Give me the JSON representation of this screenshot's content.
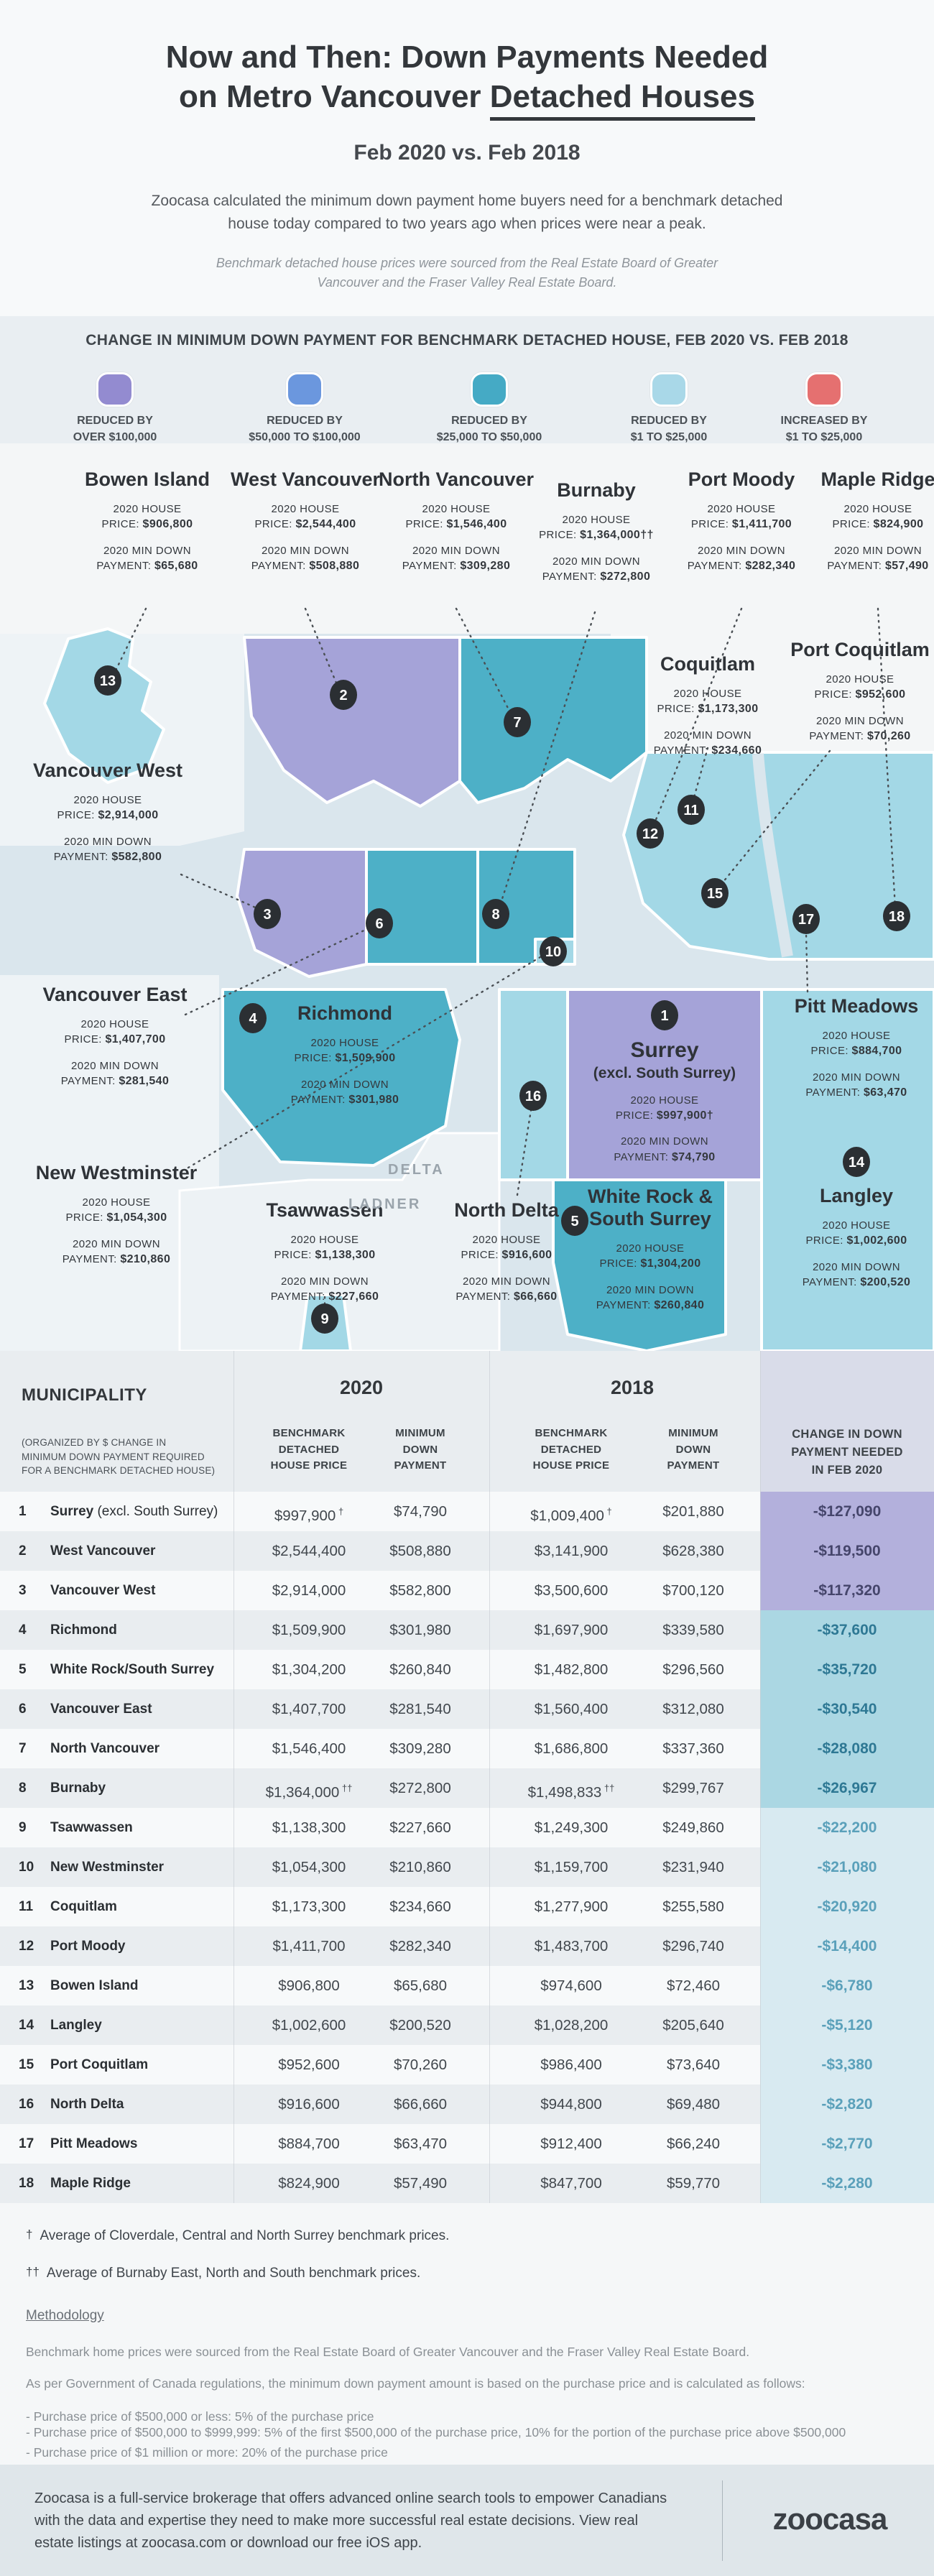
{
  "header": {
    "title_line1": "Now and Then: Down Payments Needed",
    "title_line2_prefix": "on Metro Vancouver ",
    "title_line2_underlined": "Detached Houses",
    "subtitle": "Feb 2020 vs. Feb 2018",
    "intro": "Zoocasa calculated the minimum down payment home buyers need for a benchmark detached house today compared to two years ago when prices were near a peak.",
    "source_note": "Benchmark detached house prices were sourced from the Real Estate Board of Greater Vancouver and the Fraser Valley Real Estate Board."
  },
  "legend": {
    "title": "CHANGE IN MINIMUM DOWN PAYMENT FOR BENCHMARK DETACHED HOUSE, FEB 2020 VS. FEB 2018",
    "items": [
      {
        "line1": "REDUCED BY",
        "line2": "OVER $100,000",
        "color": "#938bd0"
      },
      {
        "line1": "REDUCED BY",
        "line2": "$50,000 TO $100,000",
        "color": "#6b97de"
      },
      {
        "line1": "REDUCED BY",
        "line2": "$25,000 TO $50,000",
        "color": "#45aac5"
      },
      {
        "line1": "REDUCED BY",
        "line2": "$1 TO $25,000",
        "color": "#a9d8e8"
      },
      {
        "line1": "INCREASED BY",
        "line2": "$1 TO $25,000",
        "color": "#e57070"
      }
    ]
  },
  "map": {
    "label_captions": {
      "house": "2020 HOUSE",
      "price": "PRICE:",
      "down": "2020 MIN DOWN",
      "payment": "PAYMENT:"
    },
    "area_labels": [
      "DELTA",
      "LADNER"
    ],
    "municipalities": [
      {
        "id": 1,
        "name": "Surrey",
        "suffix": "(excl. South Surrey)",
        "price": "$997,900†",
        "payment": "$74,790",
        "category": "purple"
      },
      {
        "id": 2,
        "name": "West Vancouver",
        "price": "$2,544,400",
        "payment": "$508,880",
        "category": "purple"
      },
      {
        "id": 3,
        "name": "Vancouver West",
        "price": "$2,914,000",
        "payment": "$582,800",
        "category": "purple"
      },
      {
        "id": 4,
        "name": "Richmond",
        "price": "$1,509,900",
        "payment": "$301,980",
        "category": "teal"
      },
      {
        "id": 5,
        "name": "White Rock & South Surrey",
        "price": "$1,304,200",
        "payment": "$260,840",
        "category": "teal"
      },
      {
        "id": 6,
        "name": "Vancouver East",
        "price": "$1,407,700",
        "payment": "$281,540",
        "category": "teal"
      },
      {
        "id": 7,
        "name": "North Vancouver",
        "price": "$1,546,400",
        "payment": "$309,280",
        "category": "teal"
      },
      {
        "id": 8,
        "name": "Burnaby",
        "price": "$1,364,000††",
        "payment": "$272,800",
        "category": "teal"
      },
      {
        "id": 9,
        "name": "Tsawwassen",
        "price": "$1,138,300",
        "payment": "$227,660",
        "category": "light"
      },
      {
        "id": 10,
        "name": "New Westminster",
        "price": "$1,054,300",
        "payment": "$210,860",
        "category": "light"
      },
      {
        "id": 11,
        "name": "Coquitlam",
        "price": "$1,173,300",
        "payment": "$234,660",
        "category": "light"
      },
      {
        "id": 12,
        "name": "Port Moody",
        "price": "$1,411,700",
        "payment": "$282,340",
        "category": "light"
      },
      {
        "id": 13,
        "name": "Bowen Island",
        "price": "$906,800",
        "payment": "$65,680",
        "category": "light"
      },
      {
        "id": 14,
        "name": "Langley",
        "price": "$1,002,600",
        "payment": "$200,520",
        "category": "light"
      },
      {
        "id": 15,
        "name": "Port Coquitlam",
        "price": "$952,600",
        "payment": "$70,260",
        "category": "light"
      },
      {
        "id": 16,
        "name": "North Delta",
        "price": "$916,600",
        "payment": "$66,660",
        "category": "light"
      },
      {
        "id": 17,
        "name": "Pitt Meadows",
        "price": "$884,700",
        "payment": "$63,470",
        "category": "light"
      },
      {
        "id": 18,
        "name": "Maple Ridge",
        "price": "$824,900",
        "payment": "$57,490",
        "category": "light"
      }
    ]
  },
  "table": {
    "municipality_header": "MUNICIPALITY",
    "municipality_note_lines": [
      "(ORGANIZED BY $ CHANGE IN",
      "MINIMUM DOWN PAYMENT REQUIRED",
      "FOR A BENCHMARK DETACHED HOUSE)"
    ],
    "group_2020": "2020",
    "group_2018": "2018",
    "col_price_lines": [
      "BENCHMARK",
      "DETACHED",
      "HOUSE PRICE"
    ],
    "col_payment_lines": [
      "MINIMUM",
      "DOWN",
      "PAYMENT"
    ],
    "col_change_lines": [
      "CHANGE IN DOWN",
      "PAYMENT NEEDED",
      "IN FEB 2020"
    ],
    "rows": [
      {
        "rank": 1,
        "name": "Surrey",
        "suffix": " (excl. South Surrey)",
        "p2020": "$997,900",
        "p2020_note": "†",
        "d2020": "$74,790",
        "p2018": "$1,009,400",
        "p2018_note": "†",
        "d2018": "$201,880",
        "change": "-$127,090",
        "tier": "purple"
      },
      {
        "rank": 2,
        "name": "West Vancouver",
        "p2020": "$2,544,400",
        "d2020": "$508,880",
        "p2018": "$3,141,900",
        "d2018": "$628,380",
        "change": "-$119,500",
        "tier": "purple"
      },
      {
        "rank": 3,
        "name": "Vancouver West",
        "p2020": "$2,914,000",
        "d2020": "$582,800",
        "p2018": "$3,500,600",
        "d2018": "$700,120",
        "change": "-$117,320",
        "tier": "purple"
      },
      {
        "rank": 4,
        "name": "Richmond",
        "p2020": "$1,509,900",
        "d2020": "$301,980",
        "p2018": "$1,697,900",
        "d2018": "$339,580",
        "change": "-$37,600",
        "tier": "teal"
      },
      {
        "rank": 5,
        "name": "White Rock/South Surrey",
        "p2020": "$1,304,200",
        "d2020": "$260,840",
        "p2018": "$1,482,800",
        "d2018": "$296,560",
        "change": "-$35,720",
        "tier": "teal"
      },
      {
        "rank": 6,
        "name": "Vancouver East",
        "p2020": "$1,407,700",
        "d2020": "$281,540",
        "p2018": "$1,560,400",
        "d2018": "$312,080",
        "change": "-$30,540",
        "tier": "teal"
      },
      {
        "rank": 7,
        "name": "North Vancouver",
        "p2020": "$1,546,400",
        "d2020": "$309,280",
        "p2018": "$1,686,800",
        "d2018": "$337,360",
        "change": "-$28,080",
        "tier": "teal"
      },
      {
        "rank": 8,
        "name": "Burnaby",
        "p2020": "$1,364,000",
        "p2020_note": "††",
        "d2020": "$272,800",
        "p2018": "$1,498,833",
        "p2018_note": "††",
        "d2018": "$299,767",
        "change": "-$26,967",
        "tier": "teal"
      },
      {
        "rank": 9,
        "name": "Tsawwassen",
        "p2020": "$1,138,300",
        "d2020": "$227,660",
        "p2018": "$1,249,300",
        "d2018": "$249,860",
        "change": "-$22,200",
        "tier": "light"
      },
      {
        "rank": 10,
        "name": "New Westminster",
        "p2020": "$1,054,300",
        "d2020": "$210,860",
        "p2018": "$1,159,700",
        "d2018": "$231,940",
        "change": "-$21,080",
        "tier": "light"
      },
      {
        "rank": 11,
        "name": "Coquitlam",
        "p2020": "$1,173,300",
        "d2020": "$234,660",
        "p2018": "$1,277,900",
        "d2018": "$255,580",
        "change": "-$20,920",
        "tier": "light"
      },
      {
        "rank": 12,
        "name": "Port Moody",
        "p2020": "$1,411,700",
        "d2020": "$282,340",
        "p2018": "$1,483,700",
        "d2018": "$296,740",
        "change": "-$14,400",
        "tier": "light"
      },
      {
        "rank": 13,
        "name": "Bowen Island",
        "p2020": "$906,800",
        "d2020": "$65,680",
        "p2018": "$974,600",
        "d2018": "$72,460",
        "change": "-$6,780",
        "tier": "light"
      },
      {
        "rank": 14,
        "name": "Langley",
        "p2020": "$1,002,600",
        "d2020": "$200,520",
        "p2018": "$1,028,200",
        "d2018": "$205,640",
        "change": "-$5,120",
        "tier": "light"
      },
      {
        "rank": 15,
        "name": "Port Coquitlam",
        "p2020": "$952,600",
        "d2020": "$70,260",
        "p2018": "$986,400",
        "d2018": "$73,640",
        "change": "-$3,380",
        "tier": "light"
      },
      {
        "rank": 16,
        "name": "North Delta",
        "p2020": "$916,600",
        "d2020": "$66,660",
        "p2018": "$944,800",
        "d2018": "$69,480",
        "change": "-$2,820",
        "tier": "light"
      },
      {
        "rank": 17,
        "name": "Pitt Meadows",
        "p2020": "$884,700",
        "d2020": "$63,470",
        "p2018": "$912,400",
        "d2018": "$66,240",
        "change": "-$2,770",
        "tier": "light"
      },
      {
        "rank": 18,
        "name": "Maple Ridge",
        "p2020": "$824,900",
        "d2020": "$57,490",
        "p2018": "$847,700",
        "d2018": "$59,770",
        "change": "-$2,280",
        "tier": "light"
      }
    ]
  },
  "footnotes": [
    {
      "symbol": "†",
      "text": "Average of Cloverdale, Central and North Surrey benchmark prices."
    },
    {
      "symbol": "††",
      "text": "Average of Burnaby East, North and South benchmark prices."
    }
  ],
  "methodology": {
    "heading": "Methodology",
    "lines": [
      "Benchmark home prices were sourced from the Real Estate Board of Greater Vancouver and the Fraser Valley Real Estate Board.",
      "As per Government of Canada regulations, the minimum down payment amount is based on the purchase price and is calculated as follows:",
      "- Purchase price of $500,000 or less: 5% of the purchase price",
      "- Purchase price of $500,000 to $999,999: 5% of the first $500,000 of the purchase price, 10% for the portion of the purchase price above $500,000",
      "- Purchase price of $1 million or more: 20% of the purchase price"
    ]
  },
  "footer": {
    "text": "Zoocasa is a full-service brokerage that offers advanced online search tools to empower Canadians with the data and expertise they need to make more successful real estate decisions. View real estate listings at zoocasa.com or download our free iOS app.",
    "logo": "zoocasa"
  },
  "colors": {
    "legend_purple": "#938bd0",
    "legend_blue": "#6b97de",
    "legend_teal": "#45aac5",
    "legend_light_blue": "#a9d8e8",
    "legend_red": "#e57070",
    "map_purple": "#a5a3d8",
    "map_teal": "#4db0c7",
    "map_light": "#a3d8e6",
    "change_purple_bg": "#b3b0dc",
    "change_teal_bg": "#abd7e3",
    "change_light_bg": "#d8eaf1",
    "marker": "#2b2f33",
    "water": "#dae6ed"
  }
}
